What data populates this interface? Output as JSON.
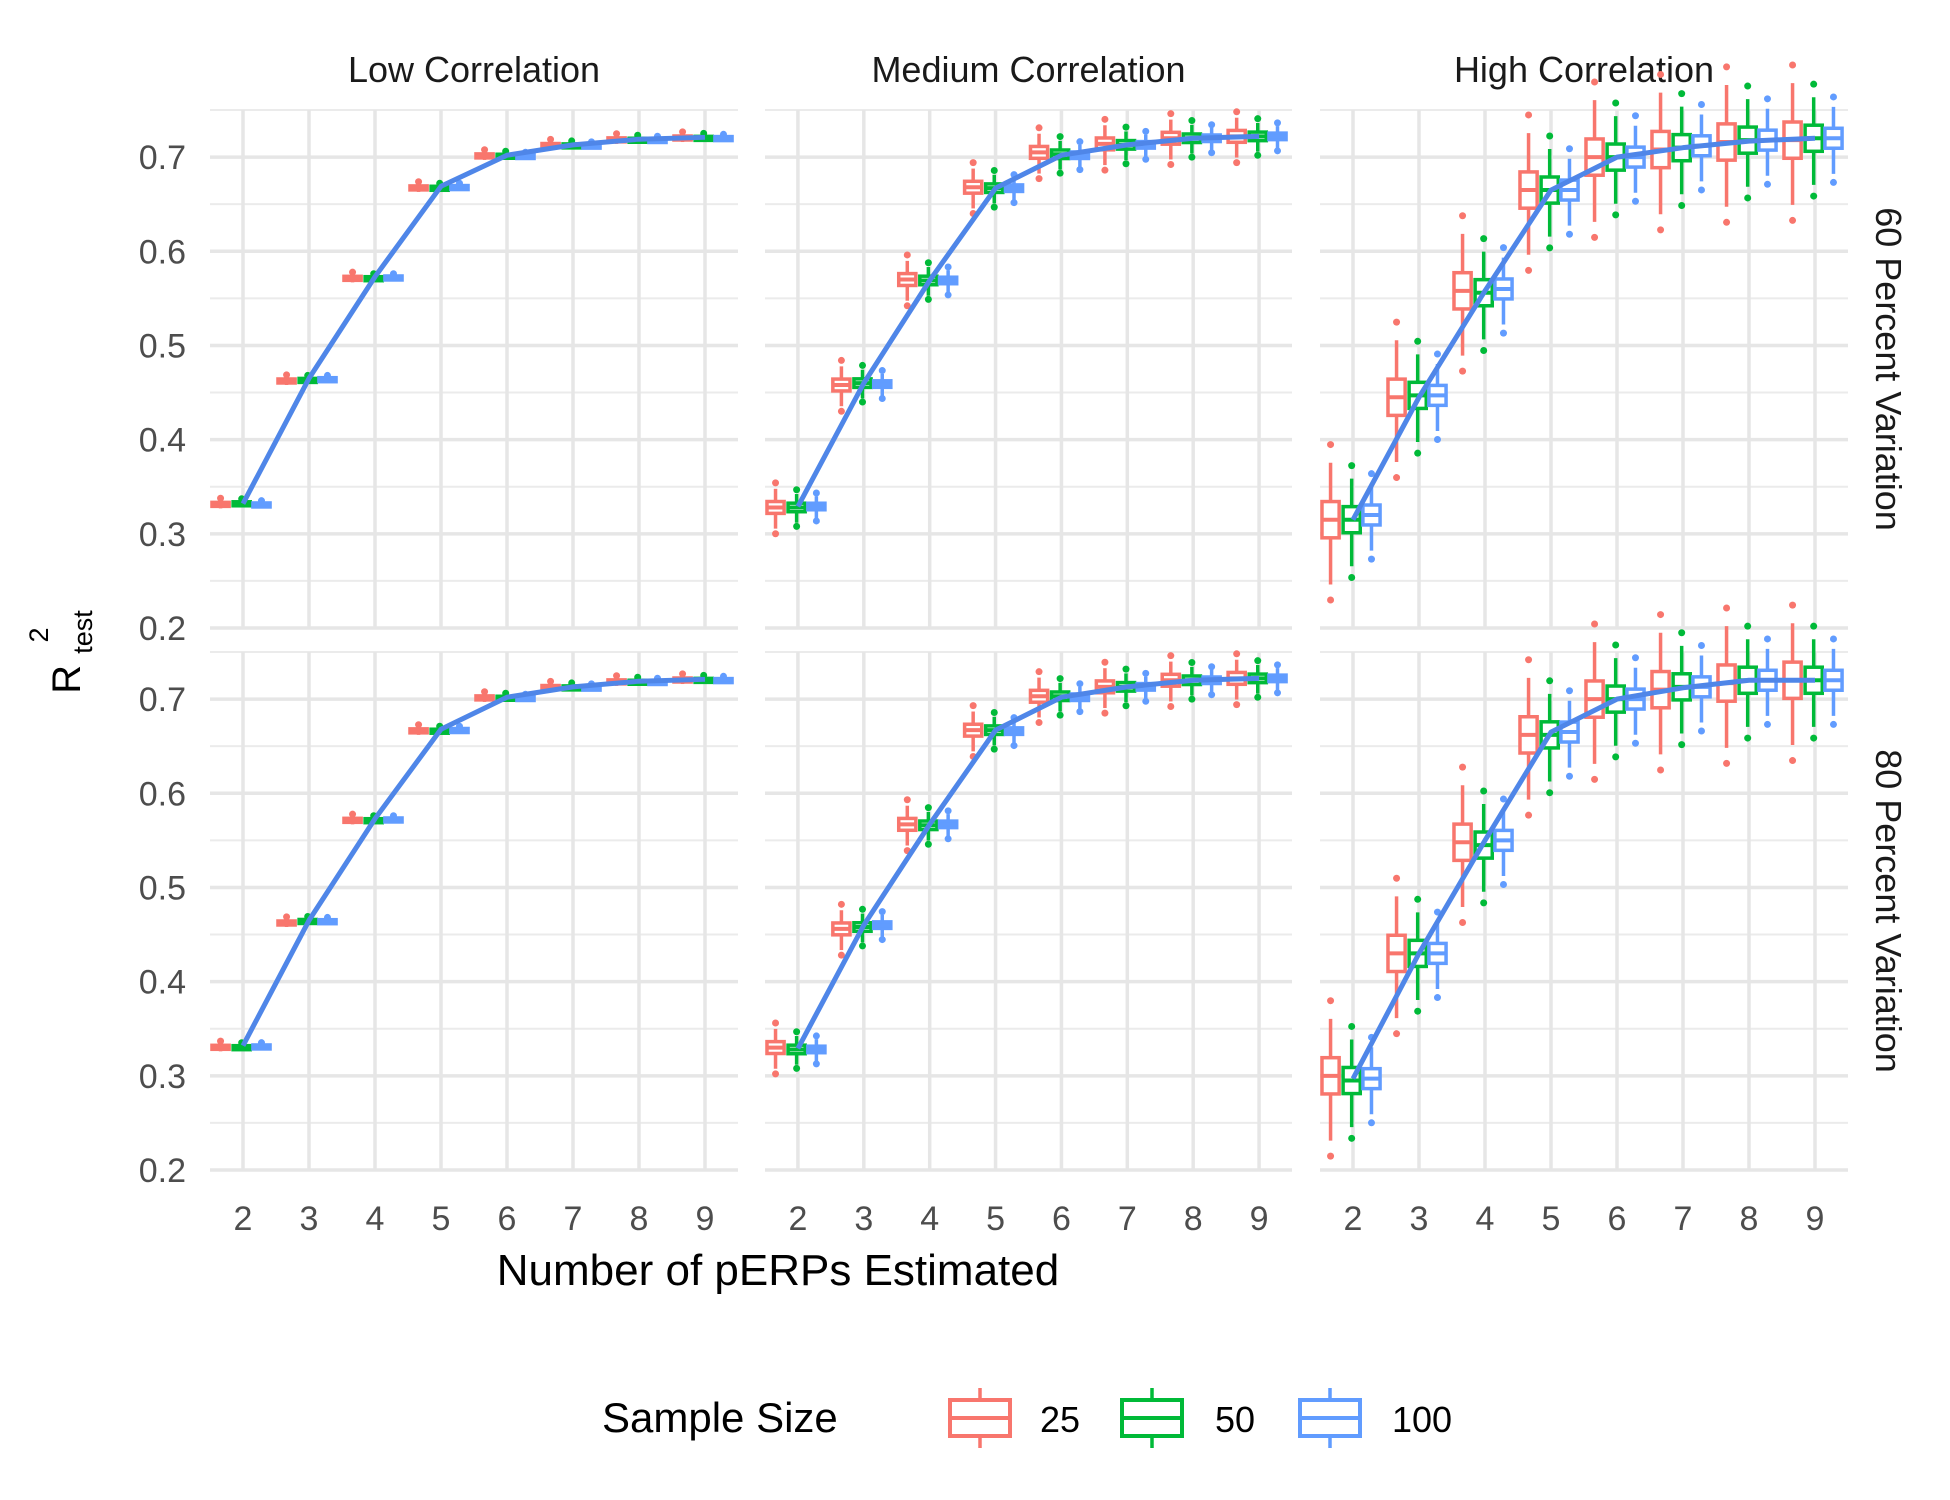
{
  "chart_data": {
    "type": "box",
    "ylabel_main": "R",
    "ylabel_sup": "2",
    "ylabel_sub": "test",
    "xlabel": "Number of pERPs Estimated",
    "x_categories": [
      "2",
      "3",
      "4",
      "5",
      "6",
      "7",
      "8",
      "9"
    ],
    "y_ticks": [
      "0.2",
      "0.3",
      "0.4",
      "0.5",
      "0.6",
      "0.7"
    ],
    "ylim": [
      0.2,
      0.75
    ],
    "grid": true,
    "col_panels": [
      "Low Correlation",
      "Medium Correlation",
      "High Correlation"
    ],
    "row_panels": [
      "60 Percent Variation",
      "80 Percent Variation"
    ],
    "legend": {
      "title": "Sample Size",
      "position": "bottom",
      "entries": [
        "25",
        "50",
        "100"
      ]
    },
    "series": [
      {
        "name": "25",
        "color": "#f8766d"
      },
      {
        "name": "50",
        "color": "#00ba38"
      },
      {
        "name": "100",
        "color": "#619cff"
      }
    ],
    "panels": [
      {
        "row": 0,
        "col": 0,
        "spread": 0.004,
        "medians": [
          [
            0.332,
            0.333,
            0.332
          ],
          [
            0.463,
            0.464,
            0.465
          ],
          [
            0.572,
            0.572,
            0.573
          ],
          [
            0.668,
            0.668,
            0.669
          ],
          [
            0.702,
            0.702,
            0.702
          ],
          [
            0.713,
            0.713,
            0.713
          ],
          [
            0.719,
            0.719,
            0.719
          ],
          [
            0.721,
            0.721,
            0.721
          ]
        ],
        "line": [
          0.332,
          0.465,
          0.573,
          0.669,
          0.702,
          0.713,
          0.719,
          0.721
        ]
      },
      {
        "row": 0,
        "col": 1,
        "spread": 0.018,
        "medians": [
          [
            0.328,
            0.328,
            0.329
          ],
          [
            0.458,
            0.46,
            0.459
          ],
          [
            0.57,
            0.569,
            0.569
          ],
          [
            0.668,
            0.667,
            0.667
          ],
          [
            0.705,
            0.703,
            0.702
          ],
          [
            0.714,
            0.713,
            0.713
          ],
          [
            0.72,
            0.72,
            0.72
          ],
          [
            0.722,
            0.722,
            0.722
          ]
        ],
        "line": [
          0.329,
          0.46,
          0.569,
          0.667,
          0.702,
          0.713,
          0.72,
          0.722
        ]
      },
      {
        "row": 0,
        "col": 2,
        "spread": 0.055,
        "medians": [
          [
            0.315,
            0.315,
            0.32
          ],
          [
            0.445,
            0.447,
            0.447
          ],
          [
            0.558,
            0.556,
            0.56
          ],
          [
            0.665,
            0.665,
            0.665
          ],
          [
            0.7,
            0.7,
            0.7
          ],
          [
            0.708,
            0.71,
            0.712
          ],
          [
            0.716,
            0.718,
            0.718
          ],
          [
            0.718,
            0.72,
            0.72
          ]
        ],
        "line": [
          0.315,
          0.445,
          0.558,
          0.665,
          0.7,
          0.71,
          0.717,
          0.72
        ]
      },
      {
        "row": 1,
        "col": 0,
        "spread": 0.004,
        "medians": [
          [
            0.331,
            0.331,
            0.332
          ],
          [
            0.463,
            0.465,
            0.465
          ],
          [
            0.572,
            0.572,
            0.573
          ],
          [
            0.667,
            0.667,
            0.668
          ],
          [
            0.702,
            0.702,
            0.702
          ],
          [
            0.713,
            0.713,
            0.713
          ],
          [
            0.719,
            0.719,
            0.719
          ],
          [
            0.721,
            0.721,
            0.721
          ]
        ],
        "line": [
          0.332,
          0.465,
          0.573,
          0.668,
          0.702,
          0.713,
          0.719,
          0.721
        ]
      },
      {
        "row": 1,
        "col": 1,
        "spread": 0.018,
        "medians": [
          [
            0.33,
            0.328,
            0.328
          ],
          [
            0.456,
            0.458,
            0.46
          ],
          [
            0.567,
            0.566,
            0.567
          ],
          [
            0.667,
            0.667,
            0.666
          ],
          [
            0.703,
            0.703,
            0.702
          ],
          [
            0.713,
            0.713,
            0.713
          ],
          [
            0.72,
            0.72,
            0.72
          ],
          [
            0.722,
            0.722,
            0.722
          ]
        ],
        "line": [
          0.329,
          0.46,
          0.567,
          0.667,
          0.702,
          0.713,
          0.72,
          0.722
        ]
      },
      {
        "row": 1,
        "col": 2,
        "spread": 0.055,
        "medians": [
          [
            0.3,
            0.295,
            0.297
          ],
          [
            0.43,
            0.43,
            0.43
          ],
          [
            0.548,
            0.545,
            0.55
          ],
          [
            0.662,
            0.662,
            0.665
          ],
          [
            0.7,
            0.7,
            0.7
          ],
          [
            0.71,
            0.713,
            0.713
          ],
          [
            0.717,
            0.72,
            0.72
          ],
          [
            0.72,
            0.72,
            0.72
          ]
        ],
        "line": [
          0.297,
          0.43,
          0.55,
          0.665,
          0.7,
          0.712,
          0.72,
          0.72
        ]
      }
    ]
  }
}
